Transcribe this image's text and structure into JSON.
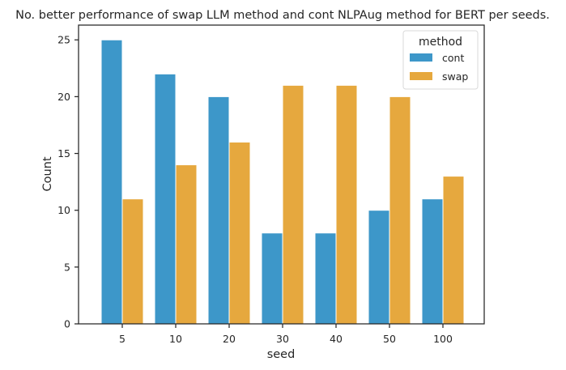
{
  "chart_data": {
    "type": "bar",
    "title": "No. better performance of swap LLM method and cont NLPAug method for BERT per seeds.",
    "xlabel": "seed",
    "ylabel": "Count",
    "categories": [
      "5",
      "10",
      "20",
      "30",
      "40",
      "50",
      "100"
    ],
    "series": [
      {
        "name": "cont",
        "values": [
          25,
          22,
          20,
          8,
          8,
          10,
          11
        ],
        "color": "#3d97c9"
      },
      {
        "name": "swap",
        "values": [
          11,
          14,
          16,
          21,
          21,
          20,
          13
        ],
        "color": "#e6a83e"
      }
    ],
    "ylim": [
      0,
      26.3
    ],
    "yticks": [
      0,
      5,
      10,
      15,
      20,
      25
    ],
    "grid": false,
    "legend": {
      "title": "method",
      "placement": "top-right"
    }
  }
}
